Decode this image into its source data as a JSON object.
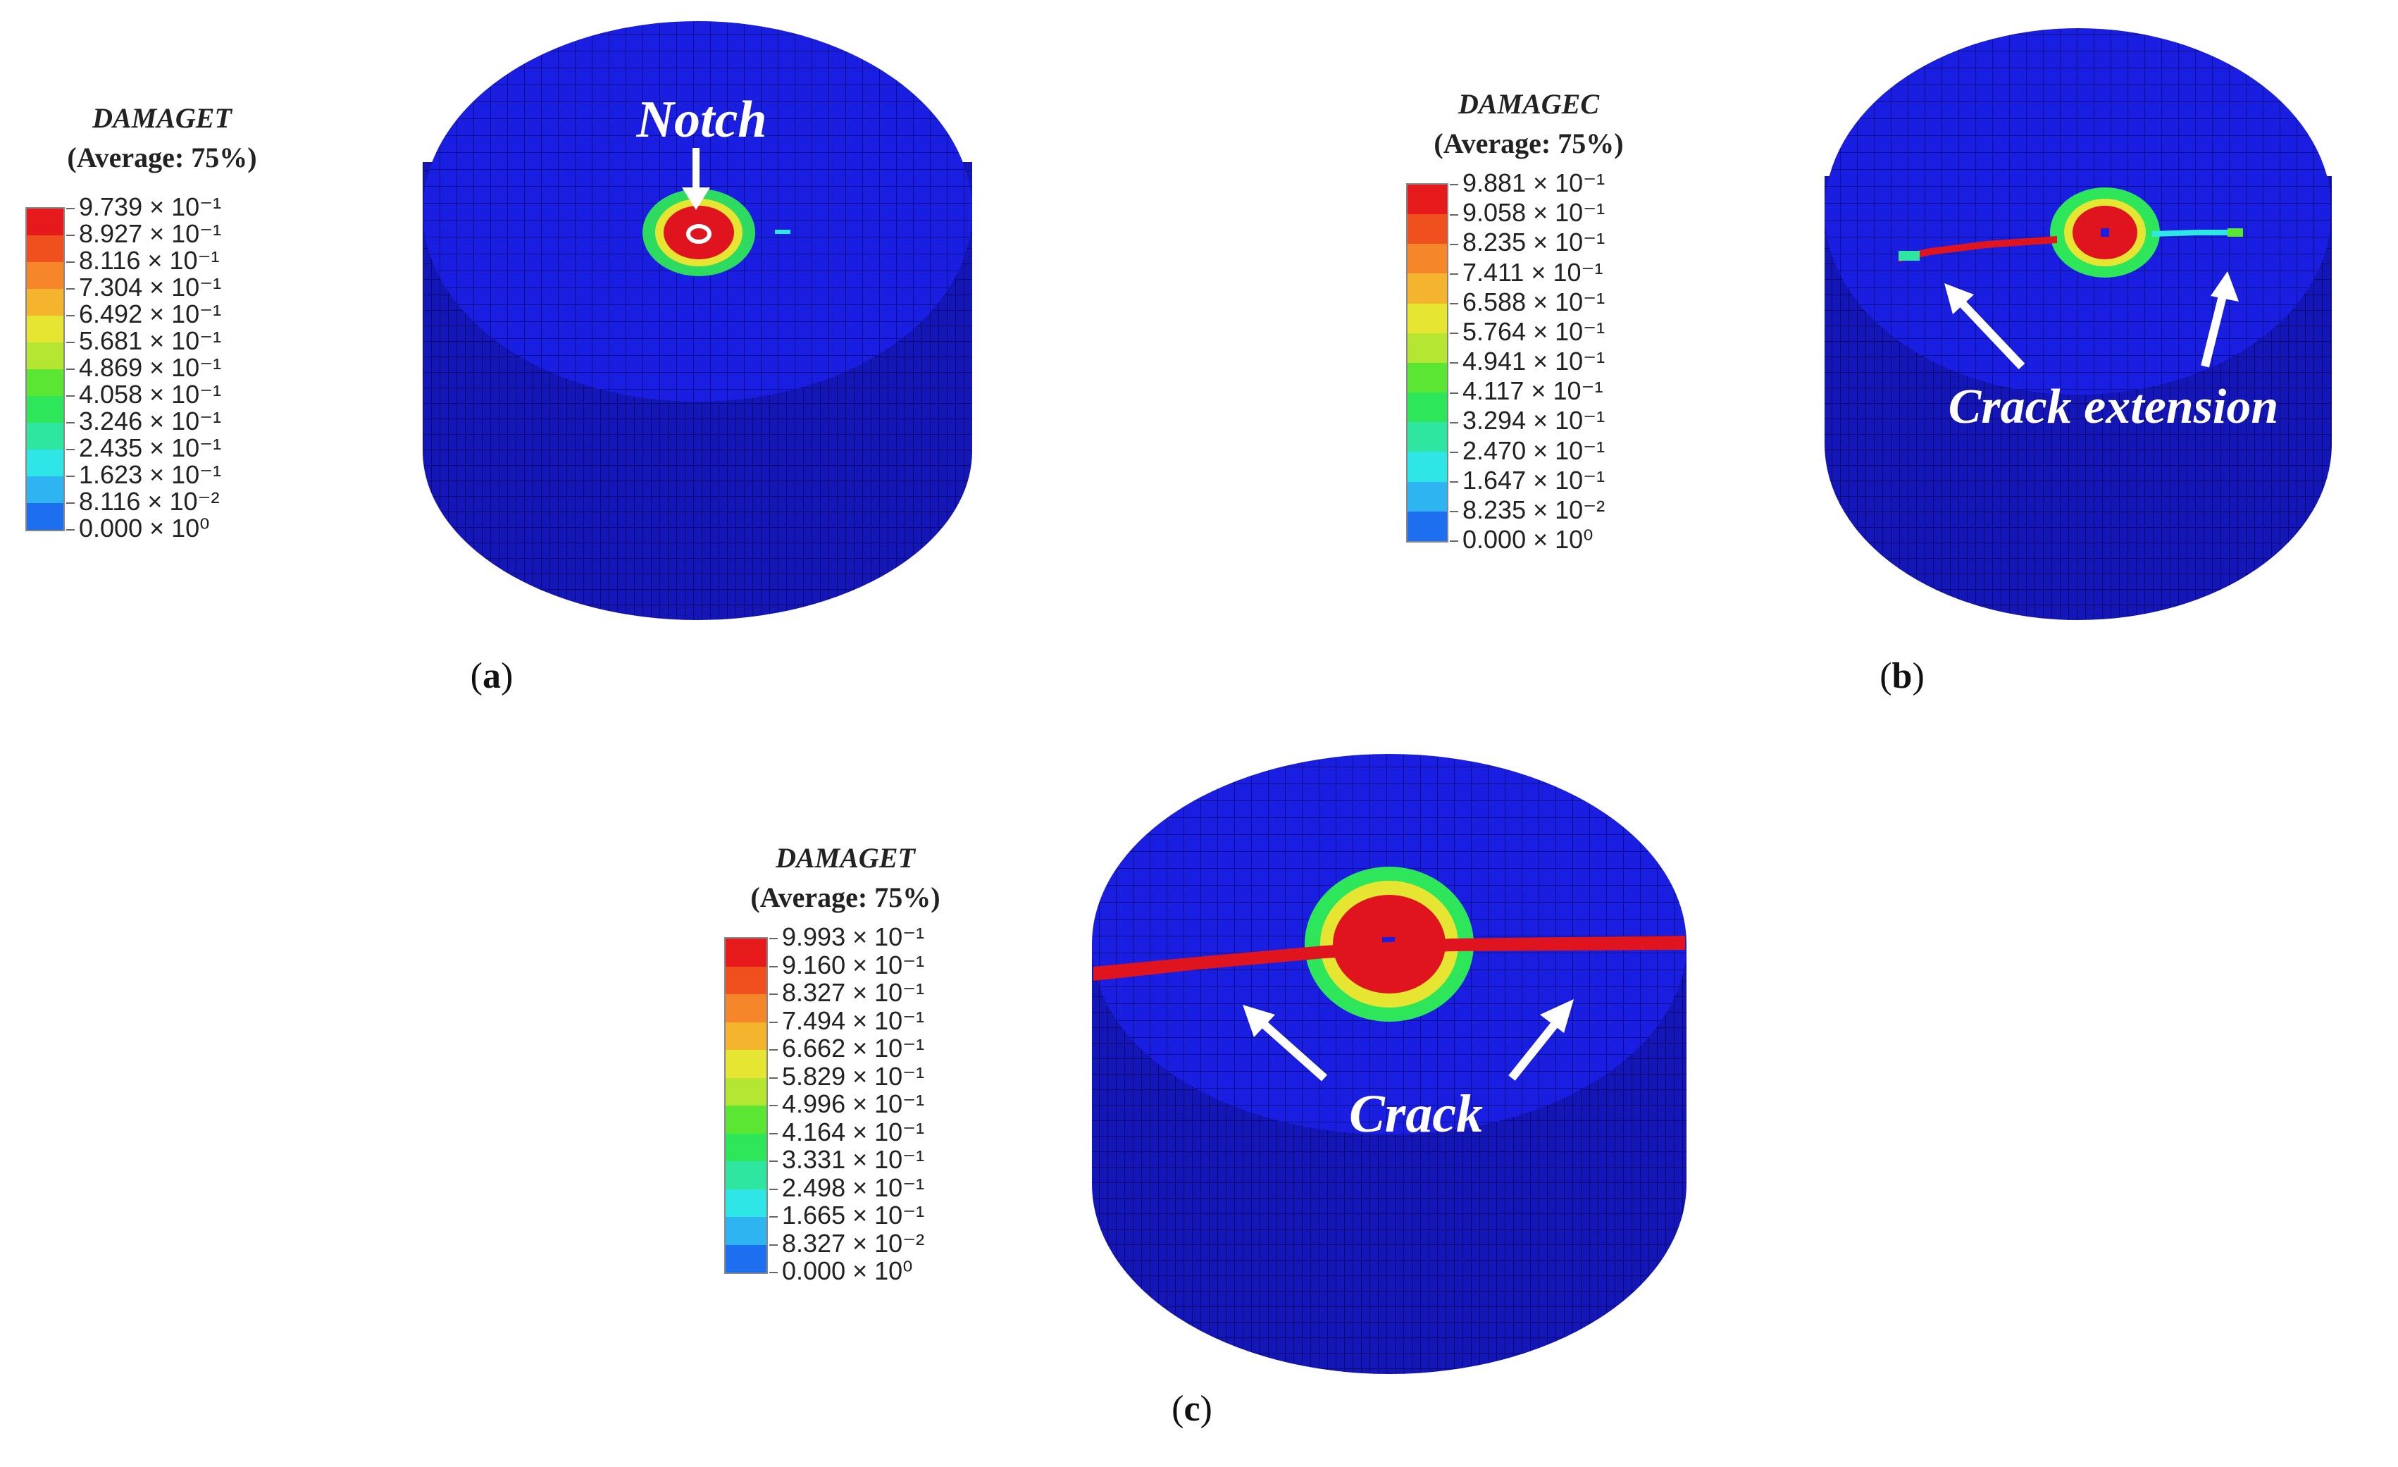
{
  "panels": [
    {
      "id": "a",
      "caption": "a",
      "legend": {
        "variable": "DAMAGET",
        "average": "(Average: 75%)",
        "ticks": [
          "9.739 × 10⁻¹",
          "8.927 × 10⁻¹",
          "8.116 × 10⁻¹",
          "7.304 × 10⁻¹",
          "6.492 × 10⁻¹",
          "5.681 × 10⁻¹",
          "4.869 × 10⁻¹",
          "4.058 × 10⁻¹",
          "3.246 × 10⁻¹",
          "2.435 × 10⁻¹",
          "1.623 × 10⁻¹",
          "8.116 × 10⁻²",
          "0.000 × 10⁰"
        ]
      },
      "annotations": [
        "Notch"
      ]
    },
    {
      "id": "b",
      "caption": "b",
      "legend": {
        "variable": "DAMAGEC",
        "average": "(Average: 75%)",
        "ticks": [
          "9.881 × 10⁻¹",
          "9.058 × 10⁻¹",
          "8.235 × 10⁻¹",
          "7.411 × 10⁻¹",
          "6.588 × 10⁻¹",
          "5.764 × 10⁻¹",
          "4.941 × 10⁻¹",
          "4.117 × 10⁻¹",
          "3.294 × 10⁻¹",
          "2.470 × 10⁻¹",
          "1.647 × 10⁻¹",
          "8.235 × 10⁻²",
          "0.000 × 10⁰"
        ]
      },
      "annotations": [
        "Crack extension"
      ]
    },
    {
      "id": "c",
      "caption": "c",
      "legend": {
        "variable": "DAMAGET",
        "average": "(Average: 75%)",
        "ticks": [
          "9.993 × 10⁻¹",
          "9.160 × 10⁻¹",
          "8.327 × 10⁻¹",
          "7.494 × 10⁻¹",
          "6.662 × 10⁻¹",
          "5.829 × 10⁻¹",
          "4.996 × 10⁻¹",
          "4.164 × 10⁻¹",
          "3.331 × 10⁻¹",
          "2.498 × 10⁻¹",
          "1.665 × 10⁻¹",
          "8.327 × 10⁻²",
          "0.000 × 10⁰"
        ]
      },
      "annotations": [
        "Crack"
      ]
    }
  ],
  "colors": {
    "band_colors": [
      "#e61a1a",
      "#f0501e",
      "#f5872a",
      "#f5b42e",
      "#e6e632",
      "#b4e632",
      "#5ae632",
      "#2ee65a",
      "#2ee6a0",
      "#2ee6e6",
      "#2eb4f0",
      "#1e6ef0",
      "#0a1ef0"
    ],
    "mesh_blue": "#1a1ee0",
    "mesh_side": "#1416b8",
    "damage_red": "#e0141e",
    "annotation_text": "#ffffff"
  }
}
